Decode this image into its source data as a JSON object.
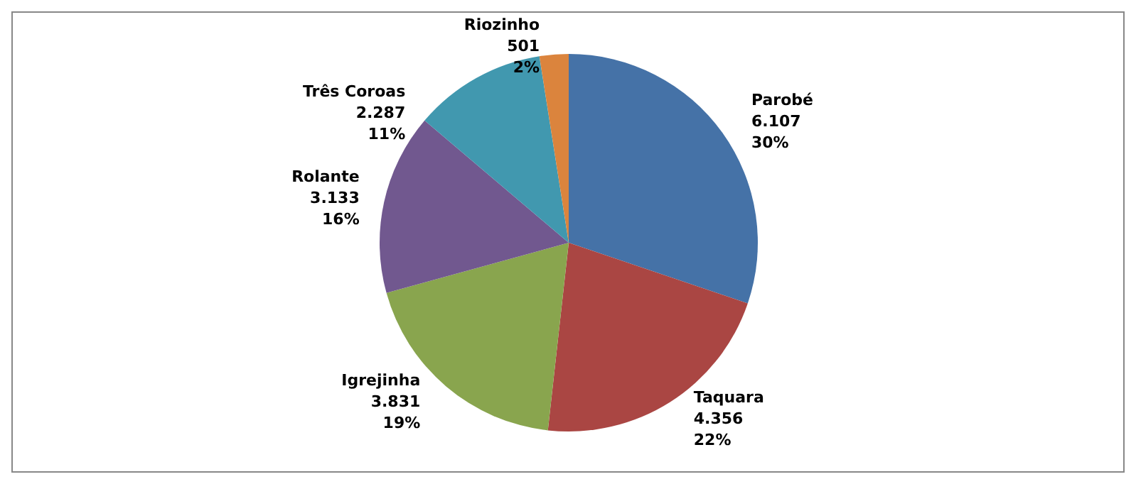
{
  "chart_data": {
    "type": "pie",
    "categories": [
      "Parobé",
      "Taquara",
      "Igrejinha",
      "Rolante",
      "Três Coroas",
      "Riozinho"
    ],
    "values": [
      6107,
      4356,
      3831,
      3133,
      2287,
      501
    ],
    "value_labels": [
      "6.107\n30%",
      "4.356\n22%",
      "3.831\n19%",
      "3.133\n16%",
      "2.287\n11%",
      "501\n2%"
    ],
    "colors": [
      "#4572a7",
      "#aa4643",
      "#89a54e",
      "#71588f",
      "#4198af",
      "#db843d"
    ],
    "legend": false
  }
}
